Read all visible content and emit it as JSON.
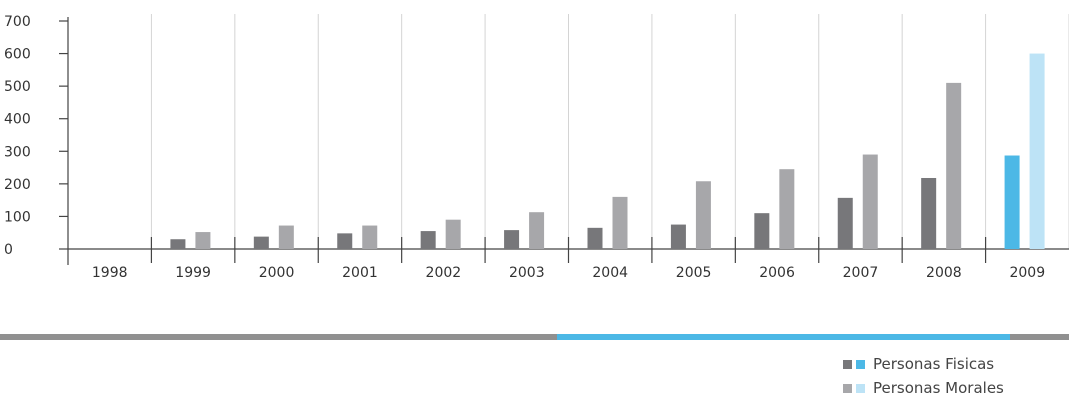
{
  "chart_data": {
    "type": "bar",
    "categories": [
      "1998",
      "1999",
      "2000",
      "2001",
      "2002",
      "2003",
      "2004",
      "2005",
      "2006",
      "2007",
      "2008",
      "2009"
    ],
    "highlight_category": "2009",
    "series": [
      {
        "name": "Personas Fisicas",
        "values": [
          0,
          30,
          38,
          48,
          55,
          58,
          65,
          75,
          110,
          157,
          218,
          287
        ]
      },
      {
        "name": "Personas Morales",
        "values": [
          0,
          52,
          72,
          72,
          90,
          113,
          160,
          208,
          245,
          290,
          510,
          600
        ]
      }
    ],
    "ylim": [
      0,
      700
    ],
    "yticks": [
      0,
      100,
      200,
      300,
      400,
      500,
      600,
      700
    ],
    "grid": "vertical",
    "legend_position": "bottom-right"
  },
  "colors": {
    "fisicas": "#77777a",
    "morales": "#a7a7aa",
    "fisicas_highlight": "#4cb8e6",
    "morales_highlight": "#bde3f6",
    "grid": "#d4d4d4",
    "axis": "#444444",
    "divider_gray": "#909090",
    "divider_blue": "#4cb8e6"
  },
  "legend": {
    "items": [
      {
        "label": "Personas Fisicas"
      },
      {
        "label": "Personas Morales"
      }
    ]
  }
}
